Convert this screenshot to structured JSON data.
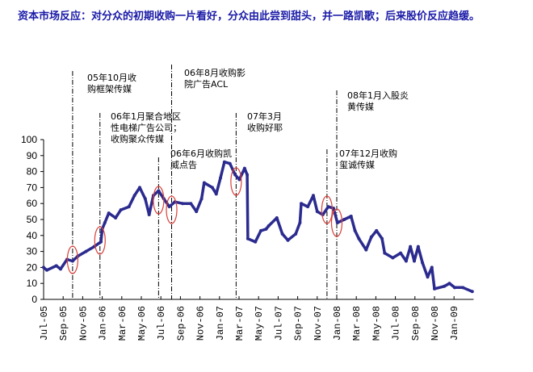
{
  "title": "资本市场反应：对分众的初期收购一片看好，分众由此尝到甜头，并一路凯歌；后来股价反应趋缓。",
  "chart_data": {
    "type": "line",
    "title": "",
    "xlabel": "",
    "ylabel": "",
    "ylim": [
      0,
      100
    ],
    "yticks": [
      "0",
      "10",
      "20",
      "30",
      "40",
      "50",
      "60",
      "70",
      "80",
      "90",
      "100"
    ],
    "xlim": [
      "2005-07-01",
      "2009-03-01"
    ],
    "xticks": [
      "Jul-05",
      "Sep-05",
      "Nov-05",
      "Jan-06",
      "Mar-06",
      "May-06",
      "Jul-06",
      "Sep-06",
      "Nov-06",
      "Jan-07",
      "Mar-07",
      "May-07",
      "Jul-07",
      "Sep-07",
      "Nov-07",
      "Jan-08",
      "Mar-08",
      "May-08",
      "Jul-08",
      "Sep-08",
      "Nov-08",
      "Jan-09"
    ],
    "grid": false,
    "line_color": "#2b2b8f",
    "highlight_color": "#d9403a",
    "series": [
      {
        "points": [
          [
            "2005-07-01",
            20
          ],
          [
            "2005-07-11",
            18.3
          ],
          [
            "2005-08-10",
            21
          ],
          [
            "2005-08-23",
            19
          ],
          [
            "2005-09-13",
            25
          ],
          [
            "2005-09-30",
            24
          ],
          [
            "2005-10-16",
            27
          ],
          [
            "2005-11-11",
            30
          ],
          [
            "2005-12-06",
            33
          ],
          [
            "2005-12-27",
            36
          ],
          [
            "2006-01-01",
            44
          ],
          [
            "2006-01-09",
            48
          ],
          [
            "2006-01-21",
            54
          ],
          [
            "2006-02-12",
            51
          ],
          [
            "2006-02-28",
            56
          ],
          [
            "2006-03-23",
            58
          ],
          [
            "2006-04-10",
            65
          ],
          [
            "2006-04-26",
            70
          ],
          [
            "2006-05-13",
            63
          ],
          [
            "2006-05-25",
            53
          ],
          [
            "2006-06-08",
            65
          ],
          [
            "2006-06-24",
            68
          ],
          [
            "2006-07-10",
            63
          ],
          [
            "2006-07-27",
            58
          ],
          [
            "2006-08-14",
            61
          ],
          [
            "2006-09-08",
            60
          ],
          [
            "2006-10-03",
            60
          ],
          [
            "2006-10-20",
            55
          ],
          [
            "2006-11-06",
            63
          ],
          [
            "2006-11-14",
            73
          ],
          [
            "2006-12-09",
            70
          ],
          [
            "2006-12-21",
            66
          ],
          [
            "2007-01-04",
            76
          ],
          [
            "2007-01-16",
            86
          ],
          [
            "2007-02-03",
            85
          ],
          [
            "2007-02-19",
            78
          ],
          [
            "2007-03-02",
            75
          ],
          [
            "2007-03-18",
            82
          ],
          [
            "2007-03-26",
            78
          ],
          [
            "2007-03-28",
            38
          ],
          [
            "2007-04-21",
            36
          ],
          [
            "2007-05-08",
            43
          ],
          [
            "2007-05-24",
            44
          ],
          [
            "2007-06-02",
            46
          ],
          [
            "2007-06-27",
            51
          ],
          [
            "2007-07-14",
            41
          ],
          [
            "2007-08-01",
            37
          ],
          [
            "2007-08-25",
            41
          ],
          [
            "2007-09-08",
            48
          ],
          [
            "2007-09-12",
            60
          ],
          [
            "2007-10-02",
            58
          ],
          [
            "2007-10-19",
            65
          ],
          [
            "2007-11-01",
            55
          ],
          [
            "2007-11-18",
            53
          ],
          [
            "2007-12-05",
            58
          ],
          [
            "2007-12-21",
            57
          ],
          [
            "2008-01-03",
            48
          ],
          [
            "2008-01-24",
            50
          ],
          [
            "2008-02-15",
            52
          ],
          [
            "2008-02-27",
            43
          ],
          [
            "2008-03-09",
            38
          ],
          [
            "2008-04-01",
            31
          ],
          [
            "2008-04-17",
            39
          ],
          [
            "2008-05-03",
            43
          ],
          [
            "2008-05-20",
            38
          ],
          [
            "2008-05-28",
            29
          ],
          [
            "2008-06-23",
            26
          ],
          [
            "2008-07-17",
            29
          ],
          [
            "2008-08-04",
            24
          ],
          [
            "2008-08-17",
            33
          ],
          [
            "2008-08-29",
            24
          ],
          [
            "2008-09-11",
            33
          ],
          [
            "2008-09-24",
            23
          ],
          [
            "2008-10-10",
            14
          ],
          [
            "2008-10-23",
            20
          ],
          [
            "2008-11-01",
            6.6
          ],
          [
            "2008-12-01",
            8.2
          ],
          [
            "2008-12-17",
            10
          ],
          [
            "2009-01-03",
            7.4
          ],
          [
            "2009-01-28",
            7.4
          ],
          [
            "2009-02-27",
            4.9
          ]
        ]
      }
    ],
    "annotations": [
      {
        "date": "2005-09-30",
        "lines": [
          "05年10月收",
          "购框架传媒"
        ]
      },
      {
        "date": "2005-12-24",
        "lines": [
          "06年1月聚合地区",
          "性电梯广告公司；",
          "收购聚众传媒"
        ]
      },
      {
        "date": "2006-06-24",
        "lines": [
          "06年6月收购凯",
          "威点告"
        ]
      },
      {
        "date": "2006-08-04",
        "lines": [
          "06年8月收购影",
          "院广告ACL"
        ]
      },
      {
        "date": "2007-02-22",
        "lines": [
          "07年3月",
          "收购好耶"
        ]
      },
      {
        "date": "2007-12-01",
        "lines": [
          "07年12月收购",
          "玺诚传媒"
        ]
      },
      {
        "date": "2008-01-01",
        "lines": [
          "08年1月入股炎",
          "黄传媒"
        ]
      }
    ]
  }
}
